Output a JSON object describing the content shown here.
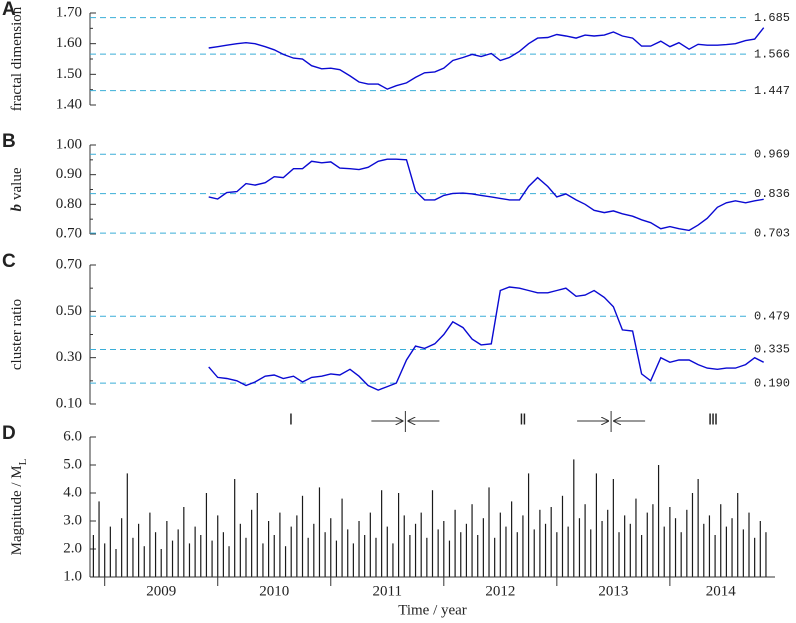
{
  "chart_data": [
    {
      "type": "line",
      "panel": "A",
      "ylabel": "fractal dimension",
      "color": "#0a0ad2",
      "xlim": [
        2008.87,
        2014.93
      ],
      "ylim": [
        1.4,
        1.7
      ],
      "yticks": [
        {
          "value": 1.4,
          "label": "1.40"
        },
        {
          "value": 1.5,
          "label": "1.50"
        },
        {
          "value": 1.6,
          "label": "1.60"
        },
        {
          "value": 1.7,
          "label": "1.70"
        }
      ],
      "yminorticks": [
        1.45,
        1.55,
        1.65
      ],
      "hlines": [
        {
          "value": 1.685,
          "color": "#b5302f"
        },
        {
          "value": 1.566,
          "color": "#1e9a3c"
        },
        {
          "value": 1.447,
          "color": "#b5302f"
        }
      ],
      "x": [
        2009.92,
        2010,
        2010.08,
        2010.17,
        2010.25,
        2010.33,
        2010.42,
        2010.5,
        2010.58,
        2010.67,
        2010.75,
        2010.83,
        2010.92,
        2011,
        2011.08,
        2011.17,
        2011.25,
        2011.33,
        2011.42,
        2011.5,
        2011.58,
        2011.67,
        2011.75,
        2011.83,
        2011.92,
        2012,
        2012.08,
        2012.17,
        2012.25,
        2012.33,
        2012.42,
        2012.5,
        2012.58,
        2012.67,
        2012.75,
        2012.83,
        2012.92,
        2013,
        2013.08,
        2013.17,
        2013.25,
        2013.33,
        2013.42,
        2013.5,
        2013.58,
        2013.67,
        2013.75,
        2013.83,
        2013.92,
        2014,
        2014.08,
        2014.17,
        2014.25,
        2014.33,
        2014.42,
        2014.5,
        2014.58,
        2014.67,
        2014.75,
        2014.83
      ],
      "values": [
        1.586,
        1.59,
        1.595,
        1.6,
        1.603,
        1.6,
        1.59,
        1.58,
        1.565,
        1.553,
        1.55,
        1.528,
        1.518,
        1.52,
        1.515,
        1.495,
        1.475,
        1.468,
        1.468,
        1.452,
        1.463,
        1.472,
        1.49,
        1.505,
        1.508,
        1.52,
        1.545,
        1.555,
        1.565,
        1.558,
        1.568,
        1.545,
        1.555,
        1.575,
        1.6,
        1.618,
        1.62,
        1.63,
        1.625,
        1.618,
        1.628,
        1.625,
        1.628,
        1.638,
        1.625,
        1.618,
        1.592,
        1.592,
        1.608,
        1.59,
        1.603,
        1.582,
        1.598,
        1.595,
        1.595,
        1.597,
        1.6,
        1.61,
        1.615,
        1.652
      ]
    },
    {
      "type": "line",
      "panel": "B",
      "ylabel_var": "b",
      "ylabel": "value",
      "color": "#0a0ad2",
      "xlim": [
        2008.87,
        2014.93
      ],
      "ylim": [
        0.7,
        1.0
      ],
      "yticks": [
        {
          "value": 0.7,
          "label": "0.70"
        },
        {
          "value": 0.8,
          "label": "0.80"
        },
        {
          "value": 0.9,
          "label": "0.90"
        },
        {
          "value": 1.0,
          "label": "1.00"
        }
      ],
      "yminorticks": [
        0.75,
        0.85,
        0.95
      ],
      "hlines": [
        {
          "value": 0.969,
          "color": "#b5302f"
        },
        {
          "value": 0.836,
          "color": "#1e9a3c"
        },
        {
          "value": 0.703,
          "color": "#b5302f"
        }
      ],
      "x": [
        2009.92,
        2010,
        2010.08,
        2010.17,
        2010.25,
        2010.33,
        2010.42,
        2010.5,
        2010.58,
        2010.67,
        2010.75,
        2010.83,
        2010.92,
        2011,
        2011.08,
        2011.17,
        2011.25,
        2011.33,
        2011.42,
        2011.5,
        2011.58,
        2011.67,
        2011.75,
        2011.83,
        2011.92,
        2012,
        2012.08,
        2012.17,
        2012.25,
        2012.33,
        2012.42,
        2012.5,
        2012.58,
        2012.67,
        2012.75,
        2012.83,
        2012.92,
        2013,
        2013.08,
        2013.17,
        2013.25,
        2013.33,
        2013.42,
        2013.5,
        2013.58,
        2013.67,
        2013.75,
        2013.83,
        2013.92,
        2014,
        2014.08,
        2014.17,
        2014.25,
        2014.33,
        2014.42,
        2014.5,
        2014.58,
        2014.67,
        2014.75,
        2014.83
      ],
      "values": [
        0.825,
        0.818,
        0.84,
        0.843,
        0.87,
        0.865,
        0.873,
        0.893,
        0.89,
        0.92,
        0.92,
        0.945,
        0.94,
        0.943,
        0.922,
        0.92,
        0.917,
        0.925,
        0.945,
        0.952,
        0.952,
        0.95,
        0.845,
        0.815,
        0.815,
        0.83,
        0.837,
        0.838,
        0.835,
        0.83,
        0.825,
        0.82,
        0.815,
        0.815,
        0.86,
        0.89,
        0.86,
        0.825,
        0.835,
        0.815,
        0.8,
        0.78,
        0.772,
        0.778,
        0.768,
        0.76,
        0.748,
        0.738,
        0.718,
        0.725,
        0.718,
        0.712,
        0.73,
        0.753,
        0.79,
        0.805,
        0.812,
        0.805,
        0.812,
        0.817
      ]
    },
    {
      "type": "line",
      "panel": "C",
      "ylabel": "cluster ratio",
      "color": "#0a0ad2",
      "xlim": [
        2008.87,
        2014.93
      ],
      "ylim": [
        0.1,
        0.7
      ],
      "yticks": [
        {
          "value": 0.1,
          "label": "0.10"
        },
        {
          "value": 0.3,
          "label": "0.30"
        },
        {
          "value": 0.5,
          "label": "0.50"
        },
        {
          "value": 0.7,
          "label": "0.70"
        }
      ],
      "yminorticks": [
        0.2,
        0.4,
        0.6
      ],
      "hlines": [
        {
          "value": 0.479,
          "color": "#b5302f"
        },
        {
          "value": 0.335,
          "color": "#1e9a3c"
        },
        {
          "value": 0.19,
          "label": "0.190",
          "color": "#b5302f"
        }
      ],
      "x": [
        2009.92,
        2010,
        2010.08,
        2010.17,
        2010.25,
        2010.33,
        2010.42,
        2010.5,
        2010.58,
        2010.67,
        2010.75,
        2010.83,
        2010.92,
        2011,
        2011.08,
        2011.17,
        2011.25,
        2011.33,
        2011.42,
        2011.5,
        2011.58,
        2011.67,
        2011.75,
        2011.83,
        2011.92,
        2012,
        2012.08,
        2012.17,
        2012.25,
        2012.33,
        2012.42,
        2012.5,
        2012.58,
        2012.67,
        2012.75,
        2012.83,
        2012.92,
        2013,
        2013.08,
        2013.17,
        2013.25,
        2013.33,
        2013.42,
        2013.5,
        2013.58,
        2013.67,
        2013.75,
        2013.83,
        2013.92,
        2014,
        2014.08,
        2014.17,
        2014.25,
        2014.33,
        2014.42,
        2014.5,
        2014.58,
        2014.67,
        2014.75,
        2014.83
      ],
      "values": [
        0.26,
        0.215,
        0.21,
        0.2,
        0.18,
        0.195,
        0.22,
        0.225,
        0.21,
        0.22,
        0.195,
        0.215,
        0.22,
        0.23,
        0.225,
        0.25,
        0.22,
        0.18,
        0.16,
        0.175,
        0.19,
        0.29,
        0.35,
        0.34,
        0.36,
        0.4,
        0.455,
        0.43,
        0.38,
        0.355,
        0.36,
        0.59,
        0.605,
        0.6,
        0.59,
        0.58,
        0.58,
        0.59,
        0.6,
        0.565,
        0.57,
        0.59,
        0.56,
        0.52,
        0.42,
        0.415,
        0.23,
        0.2,
        0.3,
        0.28,
        0.29,
        0.29,
        0.27,
        0.255,
        0.25,
        0.255,
        0.255,
        0.27,
        0.3,
        0.28
      ]
    },
    {
      "type": "bar",
      "panel": "D",
      "ylabel": "Magnitude / M",
      "ylabel_sub": "L",
      "xlabel": "Time / year",
      "color": "#1a1a1a",
      "xlim": [
        2008.87,
        2014.93
      ],
      "ylim": [
        1.0,
        6.0
      ],
      "yticks": [
        {
          "value": 1,
          "label": "1.0"
        },
        {
          "value": 2,
          "label": "2.0"
        },
        {
          "value": 3,
          "label": "3.0"
        },
        {
          "value": 4,
          "label": "4.0"
        },
        {
          "value": 5,
          "label": "5.0"
        },
        {
          "value": 6,
          "label": "6.0"
        }
      ],
      "xticks": [
        2009,
        2010,
        2011,
        2012,
        2013,
        2014
      ],
      "xlabels": [
        {
          "value": 2009.5,
          "label": "2009"
        },
        {
          "value": 2010.5,
          "label": "2010"
        },
        {
          "value": 2011.5,
          "label": "2011"
        },
        {
          "value": 2012.5,
          "label": "2012"
        },
        {
          "value": 2013.5,
          "label": "2013"
        },
        {
          "value": 2014.45,
          "label": "2014"
        }
      ],
      "x": [
        2008.9,
        2008.95,
        2009,
        2009.05,
        2009.1,
        2009.15,
        2009.2,
        2009.25,
        2009.3,
        2009.35,
        2009.4,
        2009.45,
        2009.5,
        2009.55,
        2009.6,
        2009.65,
        2009.7,
        2009.75,
        2009.8,
        2009.85,
        2009.9,
        2009.95,
        2010,
        2010.05,
        2010.1,
        2010.15,
        2010.2,
        2010.25,
        2010.3,
        2010.35,
        2010.4,
        2010.45,
        2010.5,
        2010.55,
        2010.6,
        2010.65,
        2010.7,
        2010.75,
        2010.8,
        2010.85,
        2010.9,
        2010.95,
        2011,
        2011.05,
        2011.1,
        2011.15,
        2011.2,
        2011.25,
        2011.3,
        2011.35,
        2011.4,
        2011.45,
        2011.5,
        2011.55,
        2011.6,
        2011.65,
        2011.7,
        2011.75,
        2011.8,
        2011.85,
        2011.9,
        2011.95,
        2012,
        2012.05,
        2012.1,
        2012.15,
        2012.2,
        2012.25,
        2012.3,
        2012.35,
        2012.4,
        2012.45,
        2012.5,
        2012.55,
        2012.6,
        2012.65,
        2012.7,
        2012.75,
        2012.8,
        2012.85,
        2012.9,
        2012.95,
        2013,
        2013.05,
        2013.1,
        2013.15,
        2013.2,
        2013.25,
        2013.3,
        2013.35,
        2013.4,
        2013.45,
        2013.5,
        2013.55,
        2013.6,
        2013.65,
        2013.7,
        2013.75,
        2013.8,
        2013.85,
        2013.9,
        2013.95,
        2014,
        2014.05,
        2014.1,
        2014.15,
        2014.2,
        2014.25,
        2014.3,
        2014.35,
        2014.4,
        2014.45,
        2014.5,
        2014.55,
        2014.6,
        2014.65,
        2014.7,
        2014.75,
        2014.8,
        2014.85
      ],
      "values": [
        2.5,
        3.7,
        2.2,
        2.8,
        2.0,
        3.1,
        4.7,
        2.4,
        2.9,
        2.1,
        3.3,
        2.6,
        2.0,
        3.0,
        2.3,
        2.7,
        3.5,
        2.2,
        2.8,
        2.5,
        4.0,
        2.3,
        3.2,
        2.6,
        2.1,
        4.5,
        2.9,
        2.4,
        3.4,
        4.0,
        2.2,
        3.0,
        2.5,
        3.3,
        2.1,
        2.8,
        3.2,
        3.9,
        2.4,
        2.9,
        4.2,
        2.6,
        3.1,
        2.3,
        3.8,
        2.7,
        2.2,
        3.0,
        2.5,
        3.3,
        2.4,
        4.1,
        2.8,
        2.2,
        4.0,
        3.2,
        2.5,
        2.9,
        3.3,
        2.4,
        4.1,
        2.7,
        3.0,
        2.3,
        3.4,
        2.6,
        2.9,
        3.6,
        2.5,
        3.1,
        4.2,
        2.4,
        3.3,
        2.8,
        3.7,
        2.6,
        3.2,
        4.7,
        2.7,
        3.4,
        2.9,
        3.5,
        2.6,
        3.9,
        2.8,
        5.2,
        3.1,
        3.6,
        2.7,
        4.7,
        3.0,
        3.4,
        4.5,
        2.6,
        3.2,
        2.9,
        3.8,
        2.5,
        3.3,
        3.6,
        5.0,
        2.8,
        3.5,
        3.1,
        2.6,
        3.4,
        4.0,
        4.5,
        2.9,
        3.2,
        2.5,
        3.6,
        2.8,
        3.1,
        4.0,
        2.7,
        3.3,
        2.4,
        3.0,
        2.6
      ]
    }
  ],
  "periods": {
    "labels": [
      "Ⅰ",
      "Ⅱ",
      "Ⅲ"
    ],
    "boundaries": [
      2011.66,
      2013.48
    ]
  }
}
